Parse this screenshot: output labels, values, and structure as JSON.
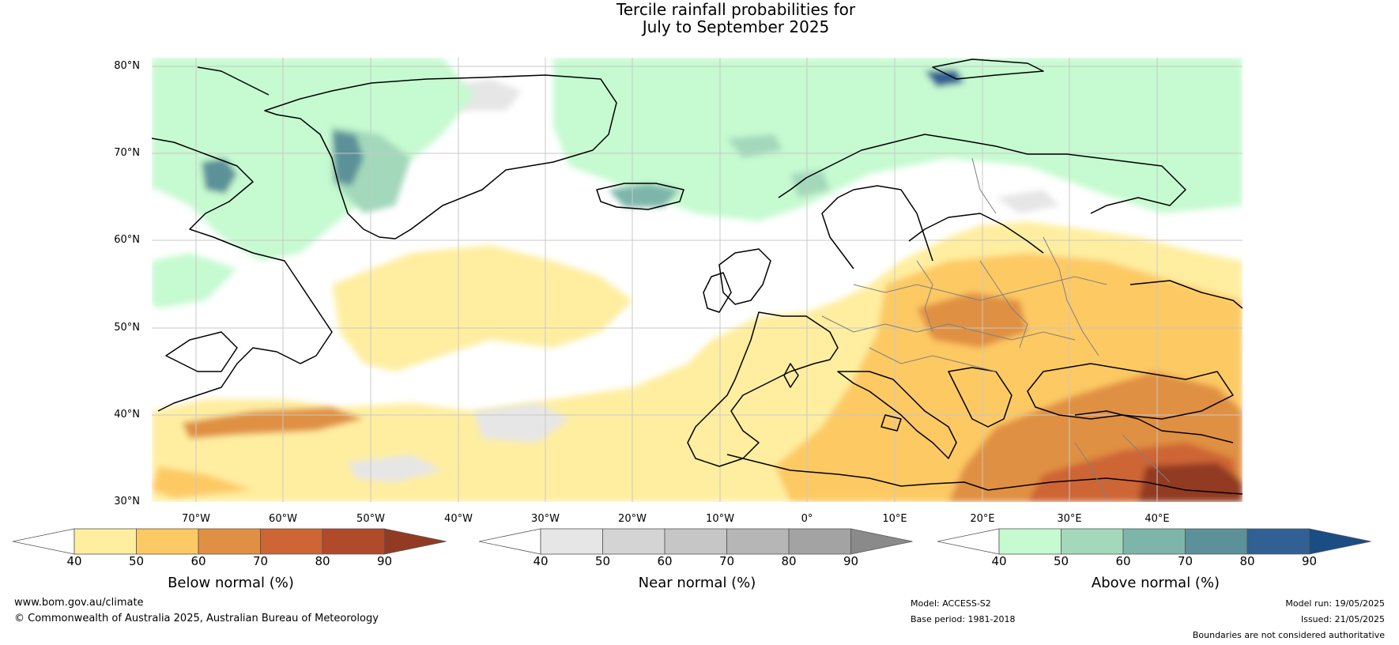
{
  "title": {
    "line1": "Tercile rainfall probabilities for",
    "line2": "July to September 2025"
  },
  "map": {
    "region": "North Atlantic, Europe, Middle East",
    "lat_labels": [
      "80°N",
      "70°N",
      "60°N",
      "50°N",
      "40°N",
      "30°N"
    ],
    "lon_labels": [
      "70°W",
      "60°W",
      "50°W",
      "40°W",
      "30°W",
      "20°W",
      "10°W",
      "0°",
      "10°E",
      "20°E",
      "30°E",
      "40°E"
    ],
    "colors": {
      "ocean": "#ffffff",
      "gridline": "#c8c8c8",
      "coastline": "#000000",
      "borders": "#808080"
    }
  },
  "colorbars": [
    {
      "title": "Below normal (%)",
      "ticks": [
        "40",
        "50",
        "60",
        "70",
        "80",
        "90"
      ],
      "colors": [
        "#ffeea0",
        "#fdc964",
        "#e09043",
        "#cd6534",
        "#b04a2b",
        "#923b22"
      ]
    },
    {
      "title": "Near normal (%)",
      "ticks": [
        "40",
        "50",
        "60",
        "70",
        "80",
        "90"
      ],
      "colors": [
        "#e6e6e6",
        "#d4d4d4",
        "#c6c6c6",
        "#b6b6b6",
        "#a3a3a3",
        "#8a8a8a"
      ]
    },
    {
      "title": "Above normal (%)",
      "ticks": [
        "40",
        "50",
        "60",
        "70",
        "80",
        "90"
      ],
      "colors": [
        "#c6fad0",
        "#a3d8bb",
        "#7db5ab",
        "#5c9199",
        "#316094",
        "#1a4d84"
      ]
    }
  ],
  "footer": {
    "website": "www.bom.gov.au/climate",
    "copyright": "© Commonwealth of Australia 2025, Australian Bureau of Meteorology",
    "model": "Model: ACCESS-S2",
    "base_period": "Base period: 1981-2018",
    "model_run": "Model run: 19/05/2025",
    "issued": "Issued: 21/05/2025",
    "disclaimer": "Boundaries are not considered authoritative"
  }
}
